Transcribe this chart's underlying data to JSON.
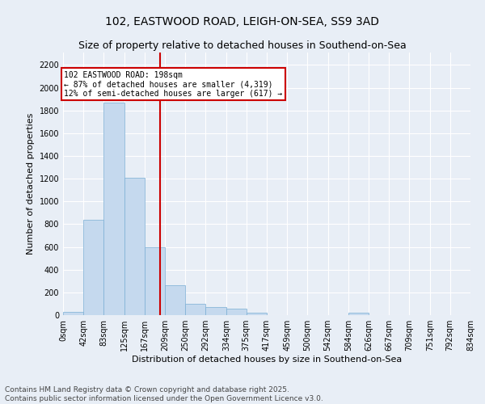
{
  "title_line1": "102, EASTWOOD ROAD, LEIGH-ON-SEA, SS9 3AD",
  "title_line2": "Size of property relative to detached houses in Southend-on-Sea",
  "xlabel": "Distribution of detached houses by size in Southend-on-Sea",
  "ylabel": "Number of detached properties",
  "bar_color": "#c5d9ee",
  "bar_edge_color": "#7aaed4",
  "background_color": "#e8eef6",
  "grid_color": "#ffffff",
  "bins": [
    0,
    42,
    83,
    125,
    167,
    209,
    250,
    292,
    334,
    375,
    417,
    459,
    500,
    542,
    584,
    626,
    667,
    709,
    751,
    792,
    834
  ],
  "bin_labels": [
    "0sqm",
    "42sqm",
    "83sqm",
    "125sqm",
    "167sqm",
    "209sqm",
    "250sqm",
    "292sqm",
    "334sqm",
    "375sqm",
    "417sqm",
    "459sqm",
    "500sqm",
    "542sqm",
    "584sqm",
    "626sqm",
    "667sqm",
    "709sqm",
    "751sqm",
    "792sqm",
    "834sqm"
  ],
  "bar_heights": [
    25,
    840,
    1870,
    1210,
    600,
    260,
    100,
    70,
    55,
    20,
    0,
    0,
    0,
    0,
    20,
    0,
    0,
    0,
    0,
    0
  ],
  "ylim": [
    0,
    2310
  ],
  "yticks": [
    0,
    200,
    400,
    600,
    800,
    1000,
    1200,
    1400,
    1600,
    1800,
    2000,
    2200
  ],
  "property_size": 198,
  "annotation_title": "102 EASTWOOD ROAD: 198sqm",
  "annotation_line2": "← 87% of detached houses are smaller (4,319)",
  "annotation_line3": "12% of semi-detached houses are larger (617) →",
  "vline_color": "#cc0000",
  "annotation_box_edge": "#cc0000",
  "annotation_box_face": "#ffffff",
  "footer_line1": "Contains HM Land Registry data © Crown copyright and database right 2025.",
  "footer_line2": "Contains public sector information licensed under the Open Government Licence v3.0.",
  "title_fontsize": 10,
  "subtitle_fontsize": 9,
  "tick_fontsize": 7,
  "xlabel_fontsize": 8,
  "ylabel_fontsize": 8,
  "footer_fontsize": 6.5
}
